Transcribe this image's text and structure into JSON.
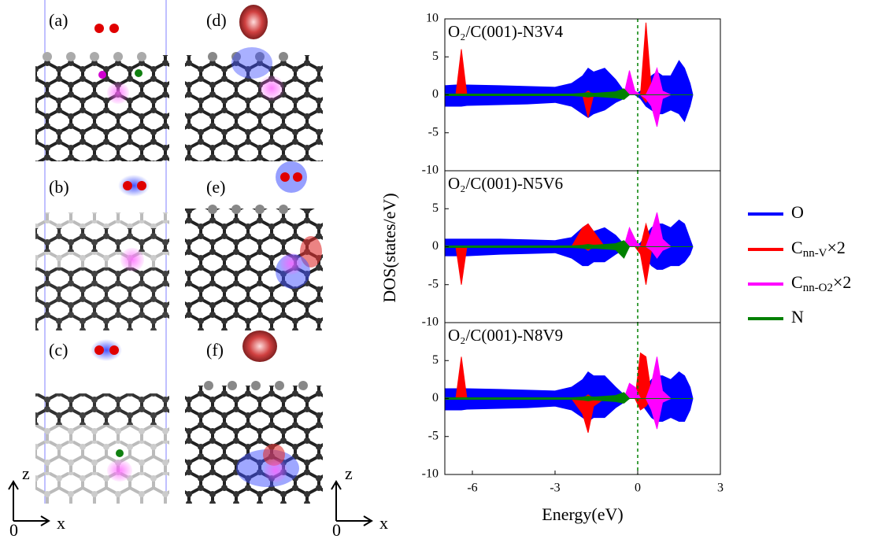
{
  "structures": {
    "labels": [
      "(a)",
      "(b)",
      "(c)",
      "(d)",
      "(e)",
      "(f)"
    ],
    "axes": [
      {
        "vertical": "z",
        "horizontal": "x",
        "origin": "0"
      },
      {
        "vertical": "z",
        "horizontal": "x",
        "origin": "0"
      }
    ]
  },
  "shared_axes": {
    "ylabel": "DOS(states/eV)",
    "xlabel": "Energy(eV)"
  },
  "legend": [
    {
      "label": "O"
    },
    {
      "label": "C",
      "subscript": "nn-V",
      "suffix": "×2"
    },
    {
      "label": "C",
      "subscript": "nn-O2",
      "suffix": "×2"
    },
    {
      "label": "N"
    }
  ],
  "chart_data": [
    {
      "type": "area",
      "title": "O₂/C(001)-N3V4",
      "x": [
        -7,
        -6.6,
        -6.4,
        -6.2,
        -5,
        -4,
        -3,
        -2.4,
        -2,
        -1.8,
        -1.6,
        -1.2,
        -0.8,
        -0.5,
        -0.3,
        -0.1,
        0.1,
        0.3,
        0.5,
        0.7,
        0.9,
        1.2,
        1.5,
        1.7,
        1.9,
        2
      ],
      "xlim": [
        -7,
        3
      ],
      "ylim": [
        -10,
        10
      ],
      "yticks": [
        -10,
        -5,
        0,
        5,
        10
      ],
      "vline": 0,
      "series": [
        {
          "color": "#0000ff",
          "up": [
            1.2,
            1.3,
            1.3,
            1.3,
            1.2,
            1.1,
            1.0,
            1.5,
            2.5,
            3.5,
            3.0,
            3.5,
            2.0,
            0.5,
            0,
            0,
            0.5,
            1.5,
            2.5,
            3.0,
            2.5,
            2.5,
            4.5,
            3.5,
            1.5,
            0
          ],
          "down": [
            -1.5,
            -1.5,
            -1.5,
            -1.4,
            -1.3,
            -1.2,
            -1.0,
            -1.5,
            -2.5,
            -3.0,
            -2.5,
            -2.0,
            -1.0,
            -0.5,
            0,
            0,
            -0.5,
            -1.5,
            -2.0,
            -2.5,
            -2.5,
            -2.0,
            -2.5,
            -3.5,
            -1.5,
            0
          ]
        },
        {
          "color": "#ff0000",
          "up": [
            0,
            0,
            6,
            0,
            0,
            0,
            0,
            0,
            0,
            0.5,
            0,
            0,
            0,
            0,
            0,
            0,
            0,
            9.5,
            0.5,
            0,
            0,
            0,
            0,
            0,
            0,
            0
          ],
          "down": [
            0,
            0,
            0,
            0,
            0,
            0,
            0,
            0,
            0,
            -3,
            0,
            0,
            0,
            0,
            0,
            0,
            0,
            -1,
            0,
            0,
            0,
            0,
            0,
            0,
            0,
            0
          ]
        },
        {
          "color": "#ff00ff",
          "up": [
            0,
            0,
            0,
            0,
            0,
            0,
            0,
            0,
            0,
            0,
            0,
            0,
            0,
            0,
            3.2,
            0.5,
            0,
            0,
            1.5,
            3.5,
            0.5,
            0,
            0,
            0,
            0,
            0
          ],
          "down": [
            0,
            0,
            0,
            0,
            0,
            0,
            0,
            0,
            0,
            0,
            0,
            0,
            0,
            0,
            0,
            0,
            0,
            -0.5,
            -1.5,
            -4.2,
            -0.5,
            0,
            0,
            0,
            0,
            0
          ]
        },
        {
          "color": "#008000",
          "up": [
            0.1,
            0.1,
            0.1,
            0.1,
            0.1,
            0.1,
            0.1,
            0.1,
            0.2,
            0.3,
            0.2,
            0.3,
            0.4,
            0.8,
            0,
            0,
            0,
            0,
            0,
            0,
            0,
            0,
            0,
            0,
            0,
            0
          ],
          "down": [
            -0.1,
            -0.1,
            -0.1,
            -0.1,
            -0.1,
            -0.1,
            -0.1,
            -0.1,
            -0.2,
            -0.3,
            -0.2,
            -0.3,
            -0.4,
            -0.6,
            0,
            0,
            0,
            0,
            0,
            0,
            0,
            0,
            0,
            0,
            0,
            0
          ]
        }
      ]
    },
    {
      "type": "area",
      "title": "O₂/C(001)-N5V6",
      "x": [
        -7,
        -6.6,
        -6.4,
        -6.2,
        -5,
        -4,
        -3,
        -2.4,
        -2,
        -1.8,
        -1.6,
        -1.2,
        -0.8,
        -0.5,
        -0.3,
        -0.1,
        0.1,
        0.3,
        0.5,
        0.7,
        0.9,
        1.2,
        1.5,
        1.7,
        1.9,
        2
      ],
      "xlim": [
        -7,
        3
      ],
      "ylim": [
        -10,
        10
      ],
      "yticks": [
        -10,
        -5,
        0,
        5
      ],
      "vline": 0,
      "series": [
        {
          "color": "#0000ff",
          "up": [
            1.0,
            1.0,
            1.0,
            1.0,
            1.0,
            0.9,
            0.8,
            1.2,
            2.5,
            3.0,
            2.0,
            2.5,
            1.5,
            0.3,
            0,
            0,
            0.5,
            1.5,
            2.5,
            3.0,
            3.0,
            2.5,
            3.5,
            3.0,
            1.0,
            0
          ],
          "down": [
            -1.2,
            -1.2,
            -1.2,
            -1.2,
            -1.0,
            -0.9,
            -0.8,
            -1.5,
            -2.5,
            -2.5,
            -2.0,
            -2.0,
            -1.0,
            -0.3,
            0,
            0,
            -0.5,
            -1.5,
            -2.5,
            -3.0,
            -3.0,
            -2.5,
            -2.5,
            -2.0,
            -1.0,
            0
          ]
        },
        {
          "color": "#ff0000",
          "up": [
            0,
            0,
            0,
            0,
            0,
            0,
            0,
            0,
            2.5,
            3.0,
            2.0,
            0,
            0,
            0,
            0,
            0,
            0,
            3,
            0.5,
            0,
            0,
            0,
            0,
            0,
            0,
            0
          ],
          "down": [
            0,
            0,
            -5,
            0,
            0,
            0,
            0,
            0,
            0,
            -0.5,
            0,
            0,
            0,
            0,
            0,
            0,
            -1,
            -5,
            -0.5,
            0,
            0,
            0,
            0,
            0,
            0,
            0
          ]
        },
        {
          "color": "#ff00ff",
          "up": [
            0,
            0,
            0,
            0,
            0,
            0,
            0,
            0,
            0,
            0,
            0,
            0,
            0,
            0,
            2.5,
            1.0,
            0,
            0,
            2.0,
            4.5,
            1.0,
            0,
            0,
            0,
            0,
            0
          ],
          "down": [
            0,
            0,
            0,
            0,
            0,
            0,
            0,
            0,
            0,
            0,
            0,
            0,
            0,
            0,
            0,
            0,
            0,
            0,
            -0.5,
            -1.5,
            -0.5,
            0,
            0,
            0,
            0,
            0
          ]
        },
        {
          "color": "#008000",
          "up": [
            0.1,
            0.1,
            0.1,
            0.1,
            0.1,
            0.1,
            0.1,
            0.1,
            0.2,
            0.3,
            0.2,
            0.3,
            0.4,
            0.8,
            0,
            0,
            0,
            0,
            0,
            0,
            0,
            0,
            0,
            0,
            0,
            0
          ],
          "down": [
            -0.1,
            -0.1,
            -0.1,
            -0.1,
            -0.1,
            -0.1,
            -0.1,
            -0.1,
            -0.2,
            -0.3,
            -0.2,
            -0.3,
            -0.4,
            -1.5,
            0,
            0,
            0,
            0,
            0,
            0,
            0,
            0,
            0,
            0,
            0,
            0
          ]
        }
      ]
    },
    {
      "type": "area",
      "title": "O₂/C(001)-N8V9",
      "x": [
        -7,
        -6.6,
        -6.4,
        -6.2,
        -5,
        -4,
        -3,
        -2.4,
        -2,
        -1.8,
        -1.6,
        -1.2,
        -0.8,
        -0.5,
        -0.3,
        -0.1,
        0.1,
        0.3,
        0.5,
        0.7,
        0.9,
        1.2,
        1.5,
        1.7,
        1.9,
        2
      ],
      "xlim": [
        -7,
        3
      ],
      "ylim": [
        -10,
        10
      ],
      "yticks": [
        -10,
        -5,
        0,
        5
      ],
      "xticks": [
        -6,
        -3,
        0,
        3
      ],
      "vline": 0,
      "series": [
        {
          "color": "#0000ff",
          "up": [
            1.3,
            1.3,
            1.3,
            1.3,
            1.2,
            1.1,
            1.0,
            1.5,
            2.5,
            3.5,
            3.0,
            3.0,
            1.5,
            0.5,
            0,
            0,
            0.5,
            1.5,
            2.5,
            3.0,
            3.0,
            2.5,
            3.5,
            3.0,
            1.5,
            0
          ],
          "down": [
            -1.5,
            -1.5,
            -1.5,
            -1.4,
            -1.3,
            -1.2,
            -1.0,
            -1.5,
            -2.5,
            -3.0,
            -2.5,
            -2.5,
            -1.2,
            -0.5,
            0,
            0,
            -0.5,
            -1.5,
            -2.5,
            -3.0,
            -3.0,
            -2.5,
            -3.0,
            -3.0,
            -1.5,
            0
          ]
        },
        {
          "color": "#ff0000",
          "up": [
            0,
            0,
            5.5,
            0,
            0,
            0,
            0,
            0,
            0,
            0.5,
            0,
            0,
            0,
            0,
            0,
            0,
            6,
            5.5,
            0.5,
            0,
            0,
            0,
            0,
            0,
            0,
            0
          ],
          "down": [
            0,
            0,
            0,
            0,
            0,
            0,
            0,
            0,
            -2,
            -4.5,
            -1,
            0,
            0,
            0,
            0,
            0,
            -1.5,
            -1,
            0,
            0,
            0,
            0,
            0,
            0,
            0,
            0
          ]
        },
        {
          "color": "#ff00ff",
          "up": [
            0,
            0,
            0,
            0,
            0,
            0,
            0,
            0,
            0,
            0,
            0,
            0,
            0,
            0,
            2.0,
            1.5,
            0,
            0,
            2.0,
            5.5,
            1.0,
            0,
            0,
            0,
            0,
            0
          ],
          "down": [
            0,
            0,
            0,
            0,
            0,
            0,
            0,
            0,
            0,
            0,
            0,
            0,
            0,
            0,
            0,
            0,
            0,
            0,
            -1.5,
            -4.0,
            -0.5,
            0,
            0,
            0,
            0,
            0
          ]
        },
        {
          "color": "#008000",
          "up": [
            0.1,
            0.1,
            0.1,
            0.1,
            0.1,
            0.1,
            0.1,
            0.1,
            0.2,
            0.3,
            0.2,
            0.3,
            0.4,
            0.8,
            0,
            0,
            0,
            0,
            0,
            0,
            0,
            0,
            0,
            0,
            0,
            0
          ],
          "down": [
            -0.1,
            -0.1,
            -0.1,
            -0.1,
            -0.1,
            -0.1,
            -0.1,
            -0.1,
            -0.2,
            -0.3,
            -0.2,
            -0.3,
            -0.4,
            -0.6,
            0,
            0,
            0,
            0,
            0,
            0,
            0,
            0,
            0,
            0,
            0,
            0
          ]
        }
      ]
    }
  ]
}
